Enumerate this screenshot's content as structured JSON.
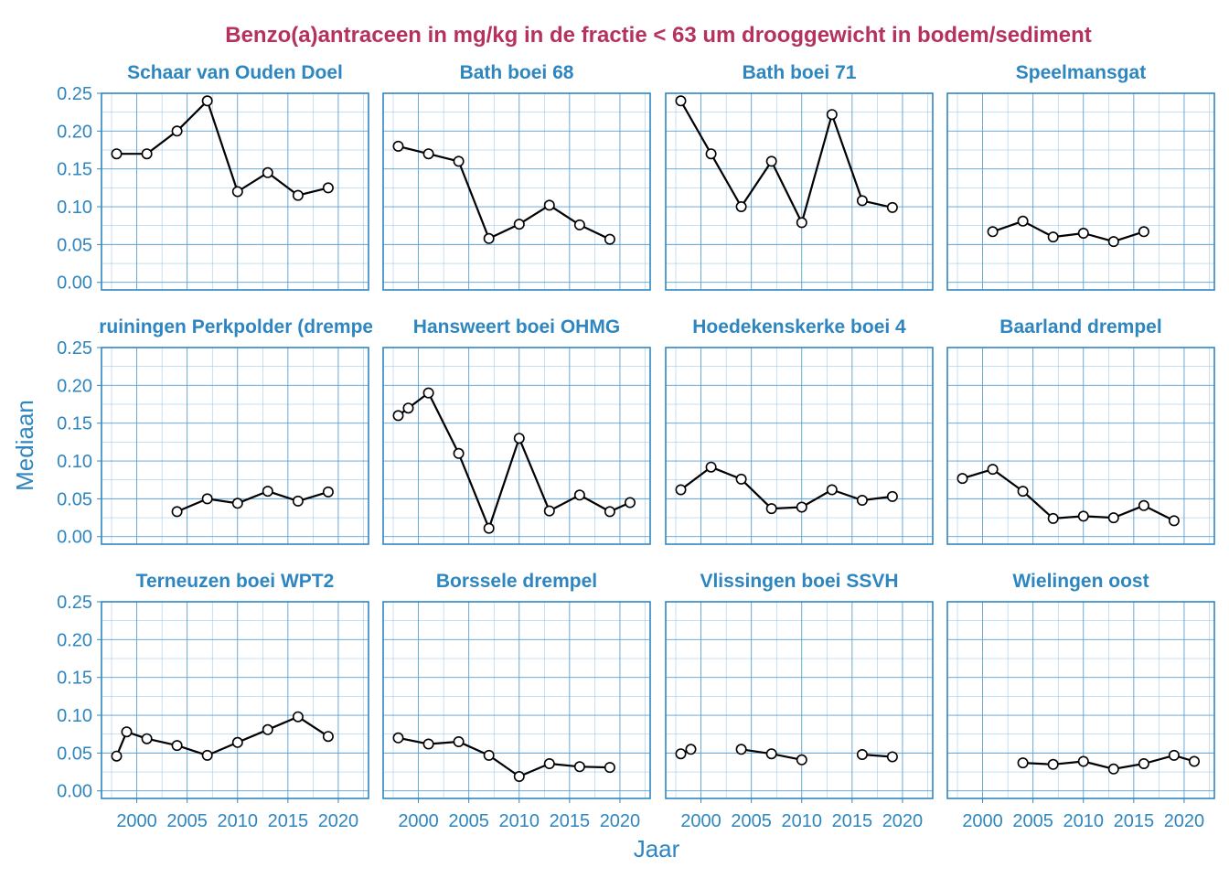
{
  "chart_data": {
    "type": "line",
    "title": "Benzo(a)antraceen in mg/kg in de fractie < 63 um drooggewicht in bodem/sediment",
    "xlabel": "Jaar",
    "ylabel": "Mediaan",
    "xlim": [
      1996.5,
      2023
    ],
    "ylim": [
      -0.01,
      0.25
    ],
    "x_ticks": [
      2000,
      2005,
      2010,
      2015,
      2020
    ],
    "y_ticks": [
      0.0,
      0.05,
      0.1,
      0.15,
      0.2,
      0.25
    ],
    "y_tick_labels": [
      "0.00",
      "0.05",
      "0.10",
      "0.15",
      "0.20",
      "0.25"
    ],
    "x_tick_labels": [
      "2000",
      "2005",
      "2010",
      "2015",
      "2020"
    ],
    "grid": true,
    "panels": [
      {
        "title": "Schaar van Ouden Doel",
        "segments": [
          [
            [
              1998,
              0.17
            ],
            [
              2001,
              0.17
            ],
            [
              2004,
              0.2
            ],
            [
              2007,
              0.24
            ],
            [
              2010,
              0.12
            ],
            [
              2013,
              0.145
            ],
            [
              2016,
              0.115
            ],
            [
              2019,
              0.125
            ]
          ]
        ]
      },
      {
        "title": "Bath boei 68",
        "segments": [
          [
            [
              1998,
              0.18
            ],
            [
              2001,
              0.17
            ],
            [
              2004,
              0.16
            ],
            [
              2007,
              0.058
            ],
            [
              2010,
              0.077
            ],
            [
              2013,
              0.102
            ],
            [
              2016,
              0.076
            ],
            [
              2019,
              0.057
            ]
          ]
        ]
      },
      {
        "title": "Bath boei 71",
        "segments": [
          [
            [
              1998,
              0.24
            ],
            [
              2001,
              0.17
            ],
            [
              2004,
              0.1
            ],
            [
              2007,
              0.16
            ],
            [
              2010,
              0.079
            ],
            [
              2013,
              0.222
            ],
            [
              2016,
              0.108
            ],
            [
              2019,
              0.099
            ]
          ]
        ]
      },
      {
        "title": "Speelmansgat",
        "segments": [
          [
            [
              2001,
              0.067
            ],
            [
              2004,
              0.081
            ],
            [
              2007,
              0.06
            ],
            [
              2010,
              0.065
            ],
            [
              2013,
              0.054
            ],
            [
              2016,
              0.067
            ]
          ]
        ]
      },
      {
        "title": "Ellewoutsdijk / Hoedekenskerke / Kruiningen Perkpolder (drempel)",
        "display_title": "Kruiningen Perkpolder (drempel)",
        "segments": [
          [
            [
              2004,
              0.033
            ],
            [
              2007,
              0.05
            ],
            [
              2010,
              0.044
            ],
            [
              2013,
              0.06
            ],
            [
              2016,
              0.047
            ],
            [
              2019,
              0.059
            ]
          ]
        ]
      },
      {
        "title": "Hansweert boei OHMG",
        "segments": [
          [
            [
              1998,
              0.16
            ],
            [
              1999,
              0.17
            ],
            [
              2001,
              0.19
            ],
            [
              2004,
              0.11
            ],
            [
              2007,
              0.011
            ],
            [
              2010,
              0.13
            ],
            [
              2013,
              0.034
            ],
            [
              2016,
              0.055
            ],
            [
              2019,
              0.033
            ],
            [
              2021,
              0.045
            ]
          ]
        ]
      },
      {
        "title": "Hoedekenskerke boei 4",
        "segments": [
          [
            [
              1998,
              0.062
            ],
            [
              2001,
              0.092
            ],
            [
              2004,
              0.076
            ],
            [
              2007,
              0.037
            ],
            [
              2010,
              0.039
            ],
            [
              2013,
              0.062
            ],
            [
              2016,
              0.048
            ],
            [
              2019,
              0.053
            ]
          ]
        ]
      },
      {
        "title": "Baarland drempel",
        "segments": [
          [
            [
              1998,
              0.077
            ],
            [
              2001,
              0.089
            ],
            [
              2004,
              0.06
            ],
            [
              2007,
              0.024
            ],
            [
              2010,
              0.027
            ],
            [
              2013,
              0.025
            ],
            [
              2016,
              0.041
            ],
            [
              2019,
              0.021
            ]
          ]
        ]
      },
      {
        "title": "Terneuzen boei WPT2",
        "segments": [
          [
            [
              1998,
              0.046
            ],
            [
              1999,
              0.078
            ],
            [
              2001,
              0.069
            ],
            [
              2004,
              0.06
            ],
            [
              2007,
              0.047
            ],
            [
              2010,
              0.064
            ],
            [
              2013,
              0.081
            ],
            [
              2016,
              0.098
            ],
            [
              2019,
              0.072
            ]
          ]
        ]
      },
      {
        "title": "Borssele drempel",
        "segments": [
          [
            [
              1998,
              0.07
            ],
            [
              2001,
              0.062
            ],
            [
              2004,
              0.065
            ],
            [
              2007,
              0.047
            ],
            [
              2010,
              0.019
            ],
            [
              2013,
              0.036
            ],
            [
              2016,
              0.032
            ],
            [
              2019,
              0.031
            ]
          ]
        ]
      },
      {
        "title": "Vlissingen boei SSVH",
        "segments": [
          [
            [
              1998,
              0.049
            ],
            [
              1999,
              0.055
            ]
          ],
          [
            [
              2004,
              0.055
            ],
            [
              2007,
              0.049
            ],
            [
              2010,
              0.041
            ]
          ],
          [
            [
              2016,
              0.048
            ],
            [
              2019,
              0.045
            ]
          ]
        ]
      },
      {
        "title": "Wielingen oost",
        "segments": [
          [
            [
              2004,
              0.037
            ],
            [
              2007,
              0.035
            ],
            [
              2010,
              0.039
            ],
            [
              2013,
              0.029
            ],
            [
              2016,
              0.036
            ],
            [
              2019,
              0.047
            ],
            [
              2021,
              0.039
            ]
          ]
        ]
      }
    ]
  }
}
